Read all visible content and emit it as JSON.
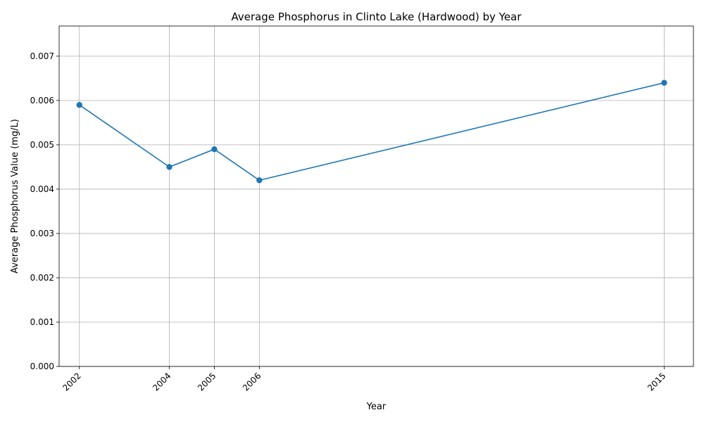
{
  "chart_data": {
    "type": "line",
    "title": "Average Phosphorus in Clinto Lake (Hardwood) by Year",
    "xlabel": "Year",
    "ylabel": "Average Phosphorus Value (mg/L)",
    "x": [
      2002,
      2004,
      2005,
      2006,
      2015
    ],
    "x_tick_labels": [
      "2002",
      "2004",
      "2005",
      "2006",
      "2015"
    ],
    "series": [
      {
        "values": [
          0.0059,
          0.0045,
          0.0049,
          0.0042,
          0.0064
        ],
        "color": "#1f77b4",
        "marker": "circle"
      }
    ],
    "xlim": [
      2001.55,
      2015.65
    ],
    "ylim": [
      0,
      0.00768
    ],
    "y_ticks": [
      0,
      0.001,
      0.002,
      0.003,
      0.004,
      0.005,
      0.006,
      0.007
    ],
    "y_tick_labels": [
      "0.000",
      "0.001",
      "0.002",
      "0.003",
      "0.004",
      "0.005",
      "0.006",
      "0.007"
    ],
    "grid": true,
    "legend": "none"
  }
}
